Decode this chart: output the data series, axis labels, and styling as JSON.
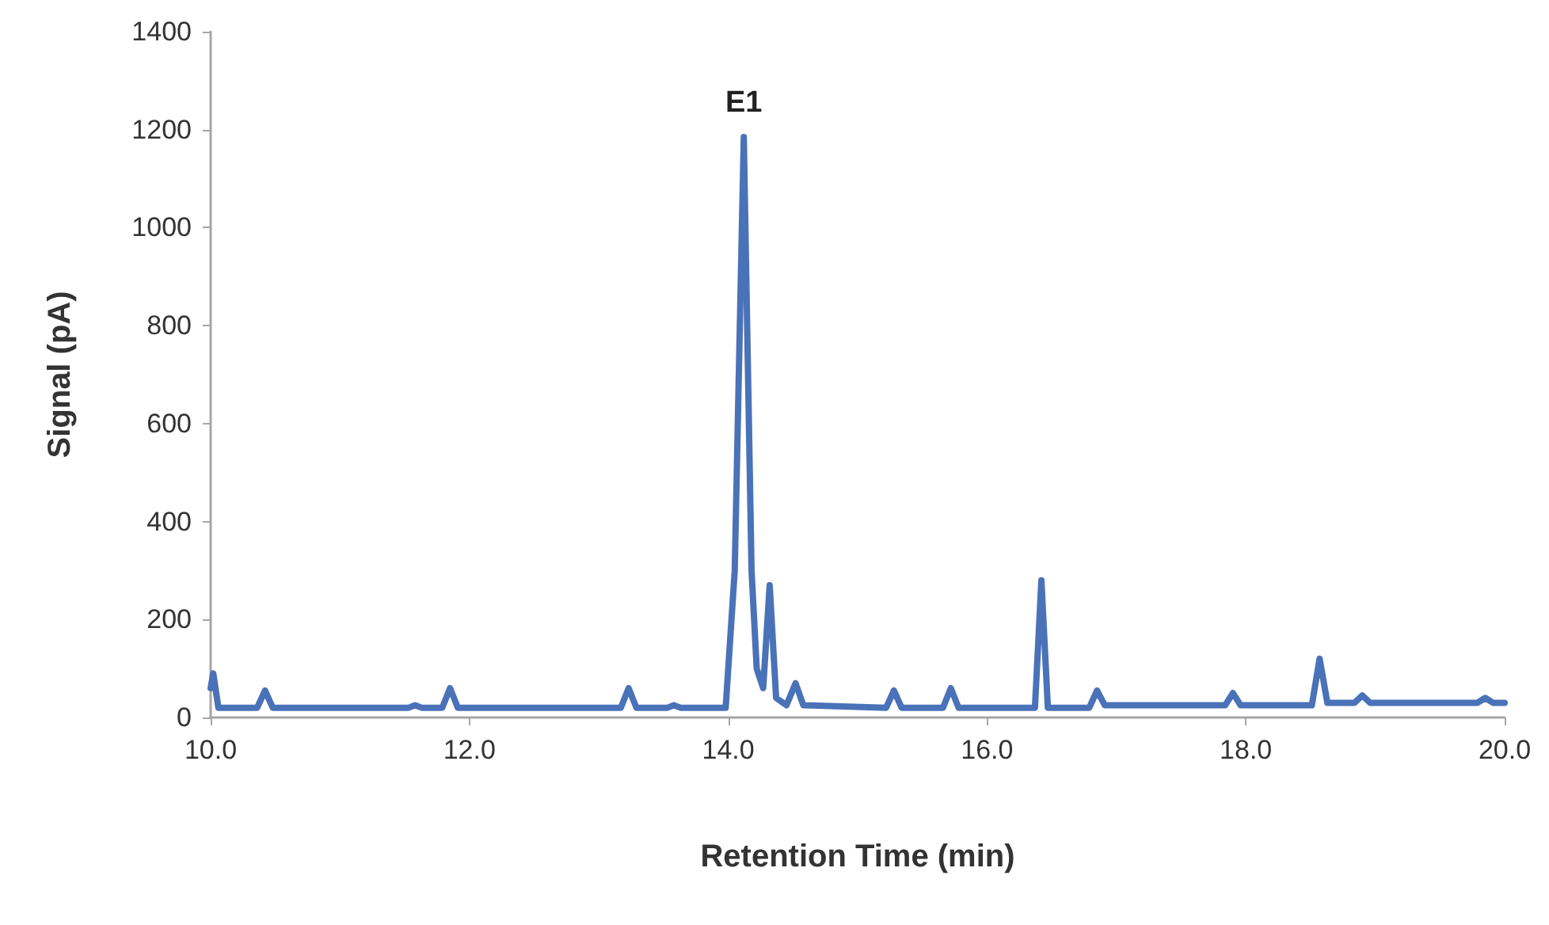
{
  "chart_data": {
    "type": "line",
    "xlabel": "Retention Time (min)",
    "ylabel": "Signal (pA)",
    "annotations": [
      {
        "text": "E1",
        "x": 14.12,
        "y": 1185
      }
    ],
    "series": [
      {
        "color": "#4a72b8",
        "x": [
          10.0,
          10.02,
          10.06,
          10.36,
          10.42,
          10.48,
          11.53,
          11.58,
          11.63,
          11.79,
          11.85,
          11.91,
          13.17,
          13.23,
          13.29,
          13.53,
          13.58,
          13.63,
          13.98,
          14.05,
          14.12,
          14.18,
          14.22,
          14.27,
          14.32,
          14.37,
          14.45,
          14.52,
          14.58,
          15.22,
          15.28,
          15.34,
          15.66,
          15.72,
          15.78,
          16.37,
          16.42,
          16.47,
          16.79,
          16.85,
          16.91,
          17.84,
          17.9,
          17.96,
          18.51,
          18.57,
          18.63,
          18.84,
          18.9,
          18.96,
          19.79,
          19.85,
          19.91,
          20.0
        ],
        "values": [
          60,
          90,
          20,
          20,
          55,
          20,
          20,
          25,
          20,
          20,
          60,
          20,
          20,
          60,
          20,
          20,
          25,
          20,
          20,
          300,
          1185,
          300,
          100,
          60,
          270,
          40,
          25,
          70,
          25,
          20,
          55,
          20,
          20,
          60,
          20,
          20,
          280,
          20,
          20,
          55,
          25,
          25,
          50,
          25,
          25,
          120,
          30,
          30,
          45,
          30,
          30,
          40,
          30,
          30
        ]
      }
    ],
    "xlim": [
      10,
      20
    ],
    "xticks": [
      {
        "value": 10,
        "label": "10.0"
      },
      {
        "value": 12,
        "label": "12.0"
      },
      {
        "value": 14,
        "label": "14.0"
      },
      {
        "value": 16,
        "label": "16.0"
      },
      {
        "value": 18,
        "label": "18.0"
      },
      {
        "value": 20,
        "label": "20.0"
      }
    ],
    "ylim": [
      0,
      1400
    ],
    "yticks": [
      0,
      200,
      400,
      600,
      800,
      1000,
      1200,
      1400
    ],
    "grid": false,
    "marker": "none",
    "line_style": "solid"
  }
}
